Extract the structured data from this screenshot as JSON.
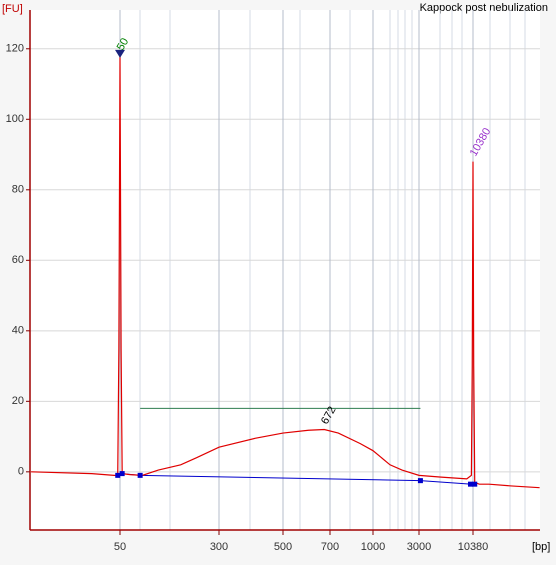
{
  "chart_data": {
    "type": "line",
    "title": "Kappock post nebulization",
    "y_label": "[FU]",
    "x_label": "[bp]",
    "color": "#e00000",
    "x": [
      10,
      30,
      45,
      48,
      49,
      50,
      51,
      52,
      60,
      75,
      100,
      150,
      200,
      300,
      400,
      500,
      600,
      672,
      750,
      900,
      1000,
      1500,
      2000,
      3000,
      5000,
      9000,
      10000,
      10200,
      10380,
      10550,
      10800,
      12000,
      15000,
      25000,
      48000
    ],
    "values": [
      0,
      -0.5,
      -1,
      -1,
      35,
      118,
      35,
      -0.5,
      -0.8,
      -1,
      0.5,
      2,
      4,
      7,
      9.5,
      11,
      11.8,
      12,
      11,
      8,
      6,
      2,
      0.5,
      -1,
      -1.5,
      -2,
      -1,
      30,
      88,
      30,
      -3,
      -3.5,
      -3.5,
      -4,
      -4.5
    ],
    "baseline": {
      "color": "#0000cc",
      "x": [
        48,
        52,
        72,
        3100,
        9800,
        10800
      ],
      "values": [
        -1,
        -0.5,
        -1,
        -2.5,
        -3.5,
        -3.5
      ]
    },
    "region_line": {
      "color": "#2e7d4f",
      "x": [
        72,
        3100
      ],
      "values": [
        18,
        18
      ]
    },
    "annotations": [
      {
        "text": "50",
        "x": 50,
        "y": 118,
        "color": "#008000"
      },
      {
        "text": "672",
        "x": 672,
        "y": 12,
        "color": "#000000"
      },
      {
        "text": "10380",
        "x": 10380,
        "y": 88,
        "color": "#9933cc"
      }
    ],
    "ylim": [
      -16.5,
      131
    ],
    "yticks": [
      0,
      20,
      40,
      60,
      80,
      100,
      120
    ],
    "xticks": [
      50,
      300,
      500,
      700,
      1000,
      3000,
      10380
    ],
    "grid": true
  }
}
